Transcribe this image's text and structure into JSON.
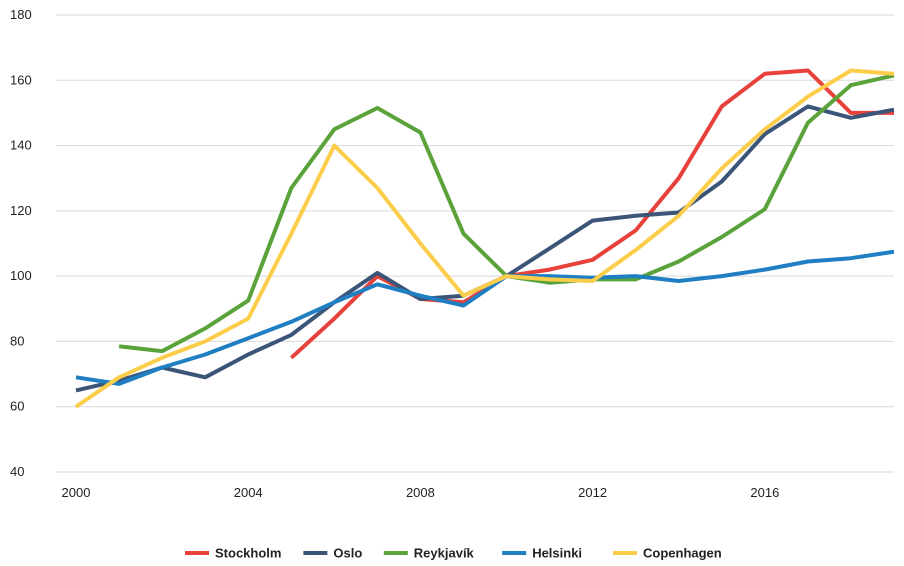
{
  "chart_data": {
    "type": "line",
    "title": "",
    "xlabel": "",
    "ylabel": "",
    "x": [
      2000,
      2001,
      2002,
      2003,
      2004,
      2005,
      2006,
      2007,
      2008,
      2009,
      2010,
      2011,
      2012,
      2013,
      2014,
      2015,
      2016,
      2017,
      2018,
      2019
    ],
    "xticks": [
      2000,
      2004,
      2008,
      2012,
      2016
    ],
    "yticks": [
      40,
      60,
      80,
      100,
      120,
      140,
      160,
      180
    ],
    "xlim": [
      2000,
      2019
    ],
    "ylim": [
      40,
      180
    ],
    "grid": "horizontal",
    "legend_position": "bottom",
    "series": [
      {
        "name": "Stockholm",
        "color": "#e8413c",
        "values": [
          null,
          null,
          null,
          null,
          null,
          75,
          87,
          100,
          93,
          92,
          100,
          102,
          105,
          114,
          130,
          152,
          162,
          163,
          150,
          150
        ]
      },
      {
        "name": "Oslo",
        "color": "#3b5579",
        "values": [
          65,
          68,
          72,
          69,
          76,
          82,
          92,
          101,
          93,
          94,
          100,
          108.5,
          117,
          118.5,
          119.5,
          129,
          143.5,
          152,
          148.5,
          151
        ]
      },
      {
        "name": "Reykjavík",
        "color": "#5aa33a",
        "values": [
          null,
          78.5,
          77,
          84,
          92.5,
          127,
          145,
          151.5,
          144,
          113,
          100,
          98,
          99,
          99,
          104.5,
          112,
          120.5,
          147,
          158.5,
          161.5
        ]
      },
      {
        "name": "Helsinki",
        "color": "#1f7fc2",
        "values": [
          69,
          67,
          72,
          76,
          81,
          86,
          92,
          97.5,
          94,
          91,
          100,
          100,
          99.5,
          100,
          98.5,
          100,
          102,
          104.5,
          105.5,
          107.5
        ]
      },
      {
        "name": "Copenhagen",
        "color": "#fbcd4a",
        "values": [
          60,
          69,
          75,
          80,
          87,
          113,
          140,
          127,
          110,
          94,
          100,
          99,
          98.5,
          108,
          118.5,
          133,
          145,
          155,
          163,
          162
        ]
      }
    ]
  }
}
